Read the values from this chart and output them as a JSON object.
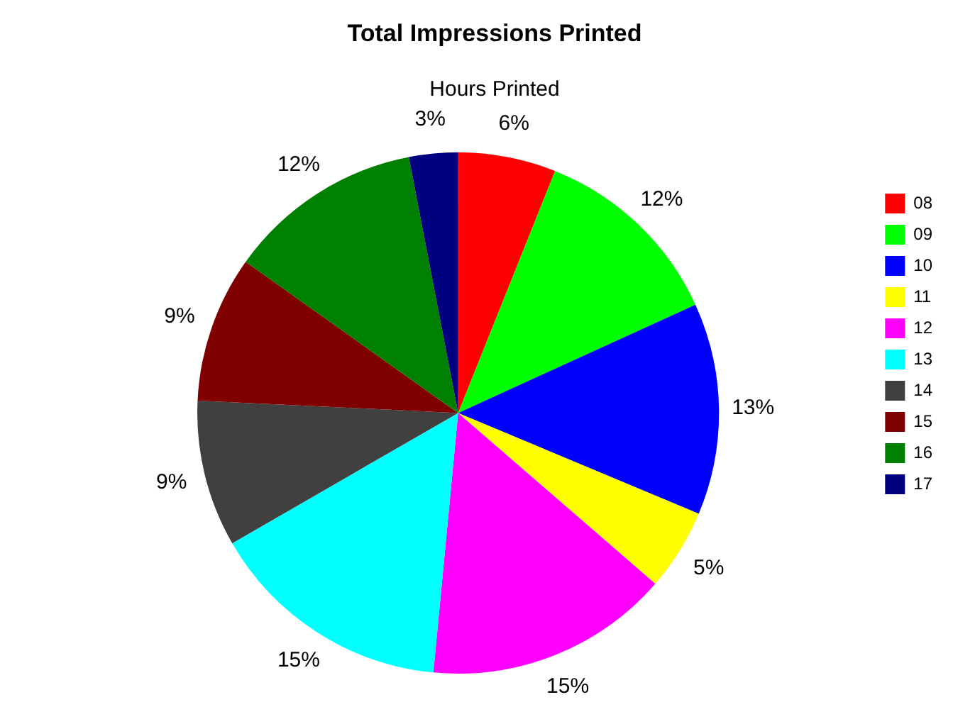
{
  "chart_data": {
    "type": "pie",
    "title": "Total Impressions Printed",
    "subtitle": "Hours Printed",
    "categories": [
      "08",
      "09",
      "10",
      "11",
      "12",
      "13",
      "14",
      "15",
      "16",
      "17"
    ],
    "values": [
      6,
      12,
      13,
      5,
      15,
      15,
      9,
      9,
      12,
      3
    ],
    "colors": [
      "#ff0000",
      "#00ff00",
      "#0000ff",
      "#ffff00",
      "#ff00ff",
      "#00ffff",
      "#404040",
      "#800000",
      "#008000",
      "#000080"
    ],
    "value_labels": [
      "6%",
      "12%",
      "13%",
      "5%",
      "15%",
      "15%",
      "9%",
      "9%",
      "12%",
      "3%"
    ],
    "legend": "right"
  }
}
